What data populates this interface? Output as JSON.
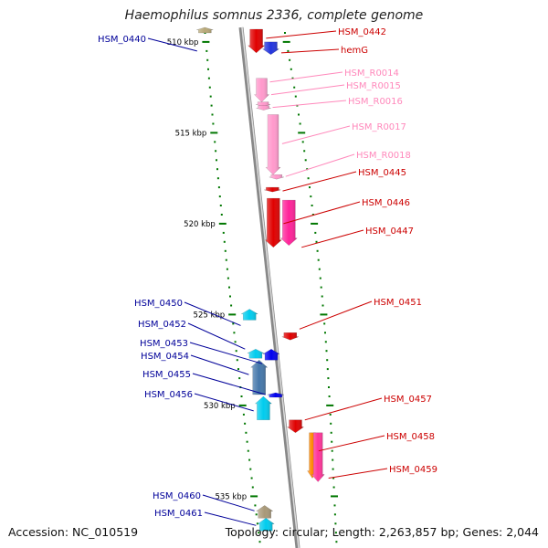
{
  "title": "Haemophilus somnus 2336, complete genome",
  "footer": {
    "accession": "Accession: NC_010519",
    "topology": "Topology: circular; Length: 2,263,857 bp; Genes: 2,044"
  },
  "colors": {
    "label_reverse": "#cc0000",
    "label_rna": "#ff88bb",
    "label_forward": "#000099",
    "backbone": "#888888",
    "tick": "#007700"
  },
  "chart_data": {
    "type": "genome-map",
    "view_range_kbp": [
      509.2,
      537.5
    ],
    "ruler_labels": [
      {
        "kbp": 510,
        "label": "510 kbp"
      },
      {
        "kbp": 515,
        "label": "515 kbp"
      },
      {
        "kbp": 520,
        "label": "520 kbp"
      },
      {
        "kbp": 525,
        "label": "525 kbp"
      },
      {
        "kbp": 530,
        "label": "530 kbp"
      },
      {
        "kbp": 535,
        "label": "535 kbp"
      }
    ],
    "features": [
      {
        "name": "HSM_0440",
        "strand": "forward",
        "start_kbp": 509.2,
        "end_kbp": 509.5,
        "color": "#b8a878",
        "label_at_kbp": 510.5
      },
      {
        "name": "HSM_0442",
        "strand": "reverse",
        "start_kbp": 509.3,
        "end_kbp": 510.6,
        "color": "#e00000",
        "label_at_kbp": 509.8
      },
      {
        "name": "hemG",
        "strand": "reverse",
        "start_kbp": 510.0,
        "end_kbp": 510.7,
        "color": "#2233dd",
        "label_at_kbp": 510.6
      },
      {
        "name": "HSM_R0014",
        "strand": "reverse",
        "start_kbp": 512.0,
        "end_kbp": 513.3,
        "color": "#ff99cc",
        "label_at_kbp": 512.2
      },
      {
        "name": "HSM_R0015",
        "strand": "reverse",
        "start_kbp": 513.3,
        "end_kbp": 513.5,
        "color": "#ff99cc",
        "label_at_kbp": 512.9
      },
      {
        "name": "HSM_R0016",
        "strand": "reverse",
        "start_kbp": 513.5,
        "end_kbp": 513.7,
        "color": "#ff99cc",
        "label_at_kbp": 513.6
      },
      {
        "name": "HSM_R0017",
        "strand": "reverse",
        "start_kbp": 514.0,
        "end_kbp": 517.3,
        "color": "#ff99cc",
        "label_at_kbp": 515.6
      },
      {
        "name": "HSM_R0018",
        "strand": "reverse",
        "start_kbp": 517.3,
        "end_kbp": 517.5,
        "color": "#ff99cc",
        "label_at_kbp": 517.4
      },
      {
        "name": "HSM_0445",
        "strand": "reverse",
        "start_kbp": 518.0,
        "end_kbp": 518.2,
        "color": "#e00000",
        "label_at_kbp": 518.2
      },
      {
        "name": "HSM_0446",
        "strand": "reverse",
        "start_kbp": 518.6,
        "end_kbp": 521.3,
        "color": "#e00000",
        "label_at_kbp": 520.0
      },
      {
        "name": "HSM_0447",
        "strand": "reverse",
        "start_kbp": 518.7,
        "end_kbp": 521.2,
        "color": "#ff2299",
        "label_at_kbp": 521.3
      },
      {
        "name": "HSM_0451",
        "strand": "reverse",
        "start_kbp": 526.0,
        "end_kbp": 526.4,
        "color": "#e00000",
        "label_at_kbp": 525.8
      },
      {
        "name": "HSM_0450",
        "strand": "forward",
        "start_kbp": 524.7,
        "end_kbp": 525.3,
        "color": "#00ccee",
        "label_at_kbp": 525.6
      },
      {
        "name": "HSM_0452",
        "strand": "forward",
        "start_kbp": 526.9,
        "end_kbp": 527.4,
        "color": "#00ccee",
        "label_at_kbp": 526.9
      },
      {
        "name": "HSM_0453",
        "strand": "forward",
        "start_kbp": 526.9,
        "end_kbp": 527.5,
        "color": "#0000ee",
        "label_at_kbp": 527.7
      },
      {
        "name": "HSM_0454",
        "strand": "forward",
        "start_kbp": 527.5,
        "end_kbp": 529.4,
        "color": "#4477aa",
        "label_at_kbp": 528.3
      },
      {
        "name": "HSM_0455",
        "strand": "forward",
        "start_kbp": 529.3,
        "end_kbp": 529.5,
        "color": "#0000ee",
        "label_at_kbp": 529.4
      },
      {
        "name": "HSM_0456",
        "strand": "forward",
        "start_kbp": 529.5,
        "end_kbp": 530.8,
        "color": "#00ccee",
        "label_at_kbp": 530.3
      },
      {
        "name": "HSM_0457",
        "strand": "reverse",
        "start_kbp": 530.8,
        "end_kbp": 531.5,
        "color": "#e00000",
        "label_at_kbp": 530.8
      },
      {
        "name": "HSM_0458",
        "strand": "reverse",
        "start_kbp": 531.5,
        "end_kbp": 534.0,
        "color": "#ff8800",
        "label_at_kbp": 532.5
      },
      {
        "name": "HSM_0459",
        "strand": "reverse",
        "start_kbp": 531.5,
        "end_kbp": 534.2,
        "color": "#ff3399",
        "label_at_kbp": 534.0
      },
      {
        "name": "HSM_0460",
        "strand": "forward",
        "start_kbp": 535.5,
        "end_kbp": 536.2,
        "color": "#a89878",
        "label_at_kbp": 535.8
      },
      {
        "name": "HSM_0461",
        "strand": "forward",
        "start_kbp": 536.2,
        "end_kbp": 536.9,
        "color": "#00ccee",
        "label_at_kbp": 536.6
      }
    ]
  }
}
